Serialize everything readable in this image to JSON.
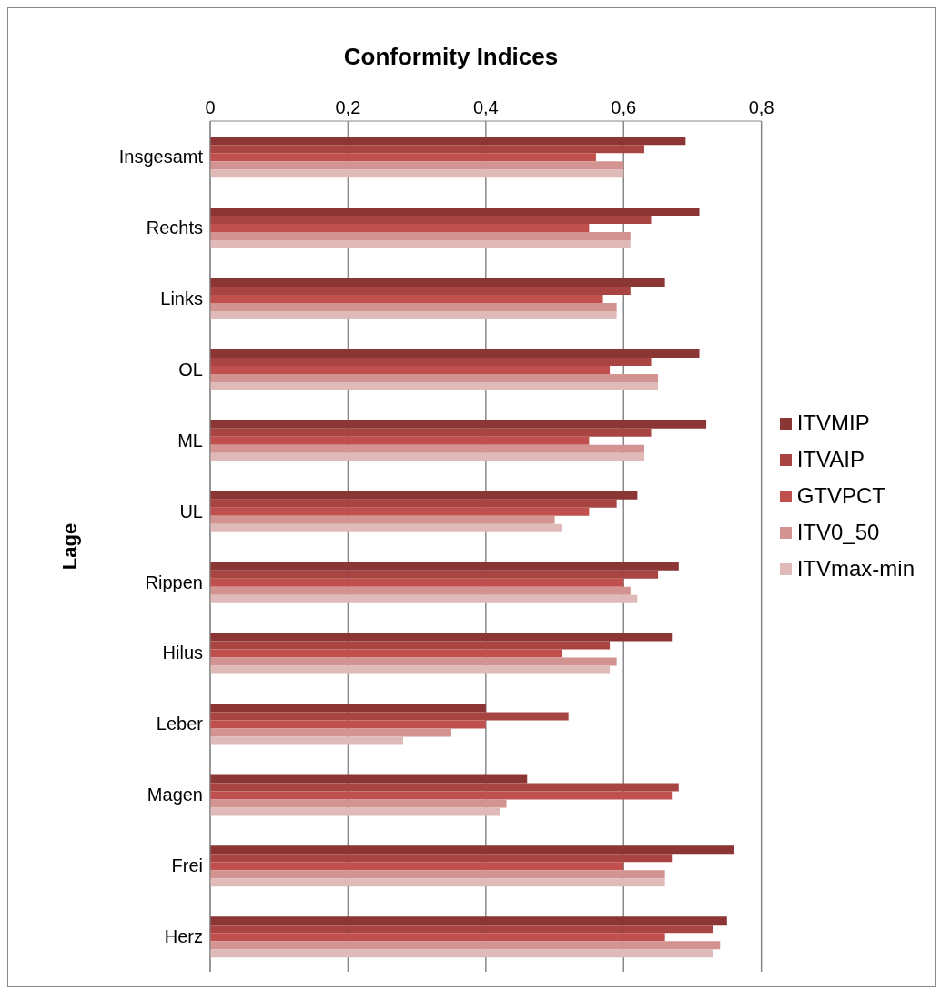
{
  "chart_data": {
    "type": "bar",
    "orientation": "horizontal",
    "title": "Conformity Indices",
    "ylabel": "Lage",
    "categories": [
      "Insgesamt",
      "Rechts",
      "Links",
      "OL",
      "ML",
      "UL",
      "Rippen",
      "Hilus",
      "Leber",
      "Magen",
      "Frei",
      "Herz"
    ],
    "series": [
      {
        "name": "ITVMIP",
        "color": "#8b3535",
        "values": [
          0.69,
          0.71,
          0.66,
          0.71,
          0.72,
          0.62,
          0.68,
          0.67,
          0.4,
          0.46,
          0.76,
          0.75
        ]
      },
      {
        "name": "ITVAIP",
        "color": "#a84442",
        "values": [
          0.63,
          0.64,
          0.61,
          0.64,
          0.64,
          0.59,
          0.65,
          0.58,
          0.52,
          0.68,
          0.67,
          0.73
        ]
      },
      {
        "name": "GTVPCT",
        "color": "#c0504d",
        "values": [
          0.56,
          0.55,
          0.57,
          0.58,
          0.55,
          0.55,
          0.6,
          0.51,
          0.4,
          0.67,
          0.6,
          0.66
        ]
      },
      {
        "name": "ITV0_50",
        "color": "#d39391",
        "values": [
          0.6,
          0.61,
          0.59,
          0.65,
          0.63,
          0.5,
          0.61,
          0.59,
          0.35,
          0.43,
          0.66,
          0.74
        ]
      },
      {
        "name": "ITVmax-min",
        "color": "#e0bab9",
        "values": [
          0.6,
          0.61,
          0.59,
          0.65,
          0.63,
          0.51,
          0.62,
          0.58,
          0.28,
          0.42,
          0.66,
          0.73
        ]
      }
    ],
    "xlim": [
      0,
      0.8
    ],
    "xticks": [
      0,
      {
        "value": 0.2,
        "label": "0,2"
      },
      {
        "value": 0.4,
        "label": "0,4"
      },
      {
        "value": 0.6,
        "label": "0,6"
      },
      {
        "value": 0.8,
        "label": "0,8"
      }
    ],
    "grid": "x",
    "legend": "right"
  }
}
